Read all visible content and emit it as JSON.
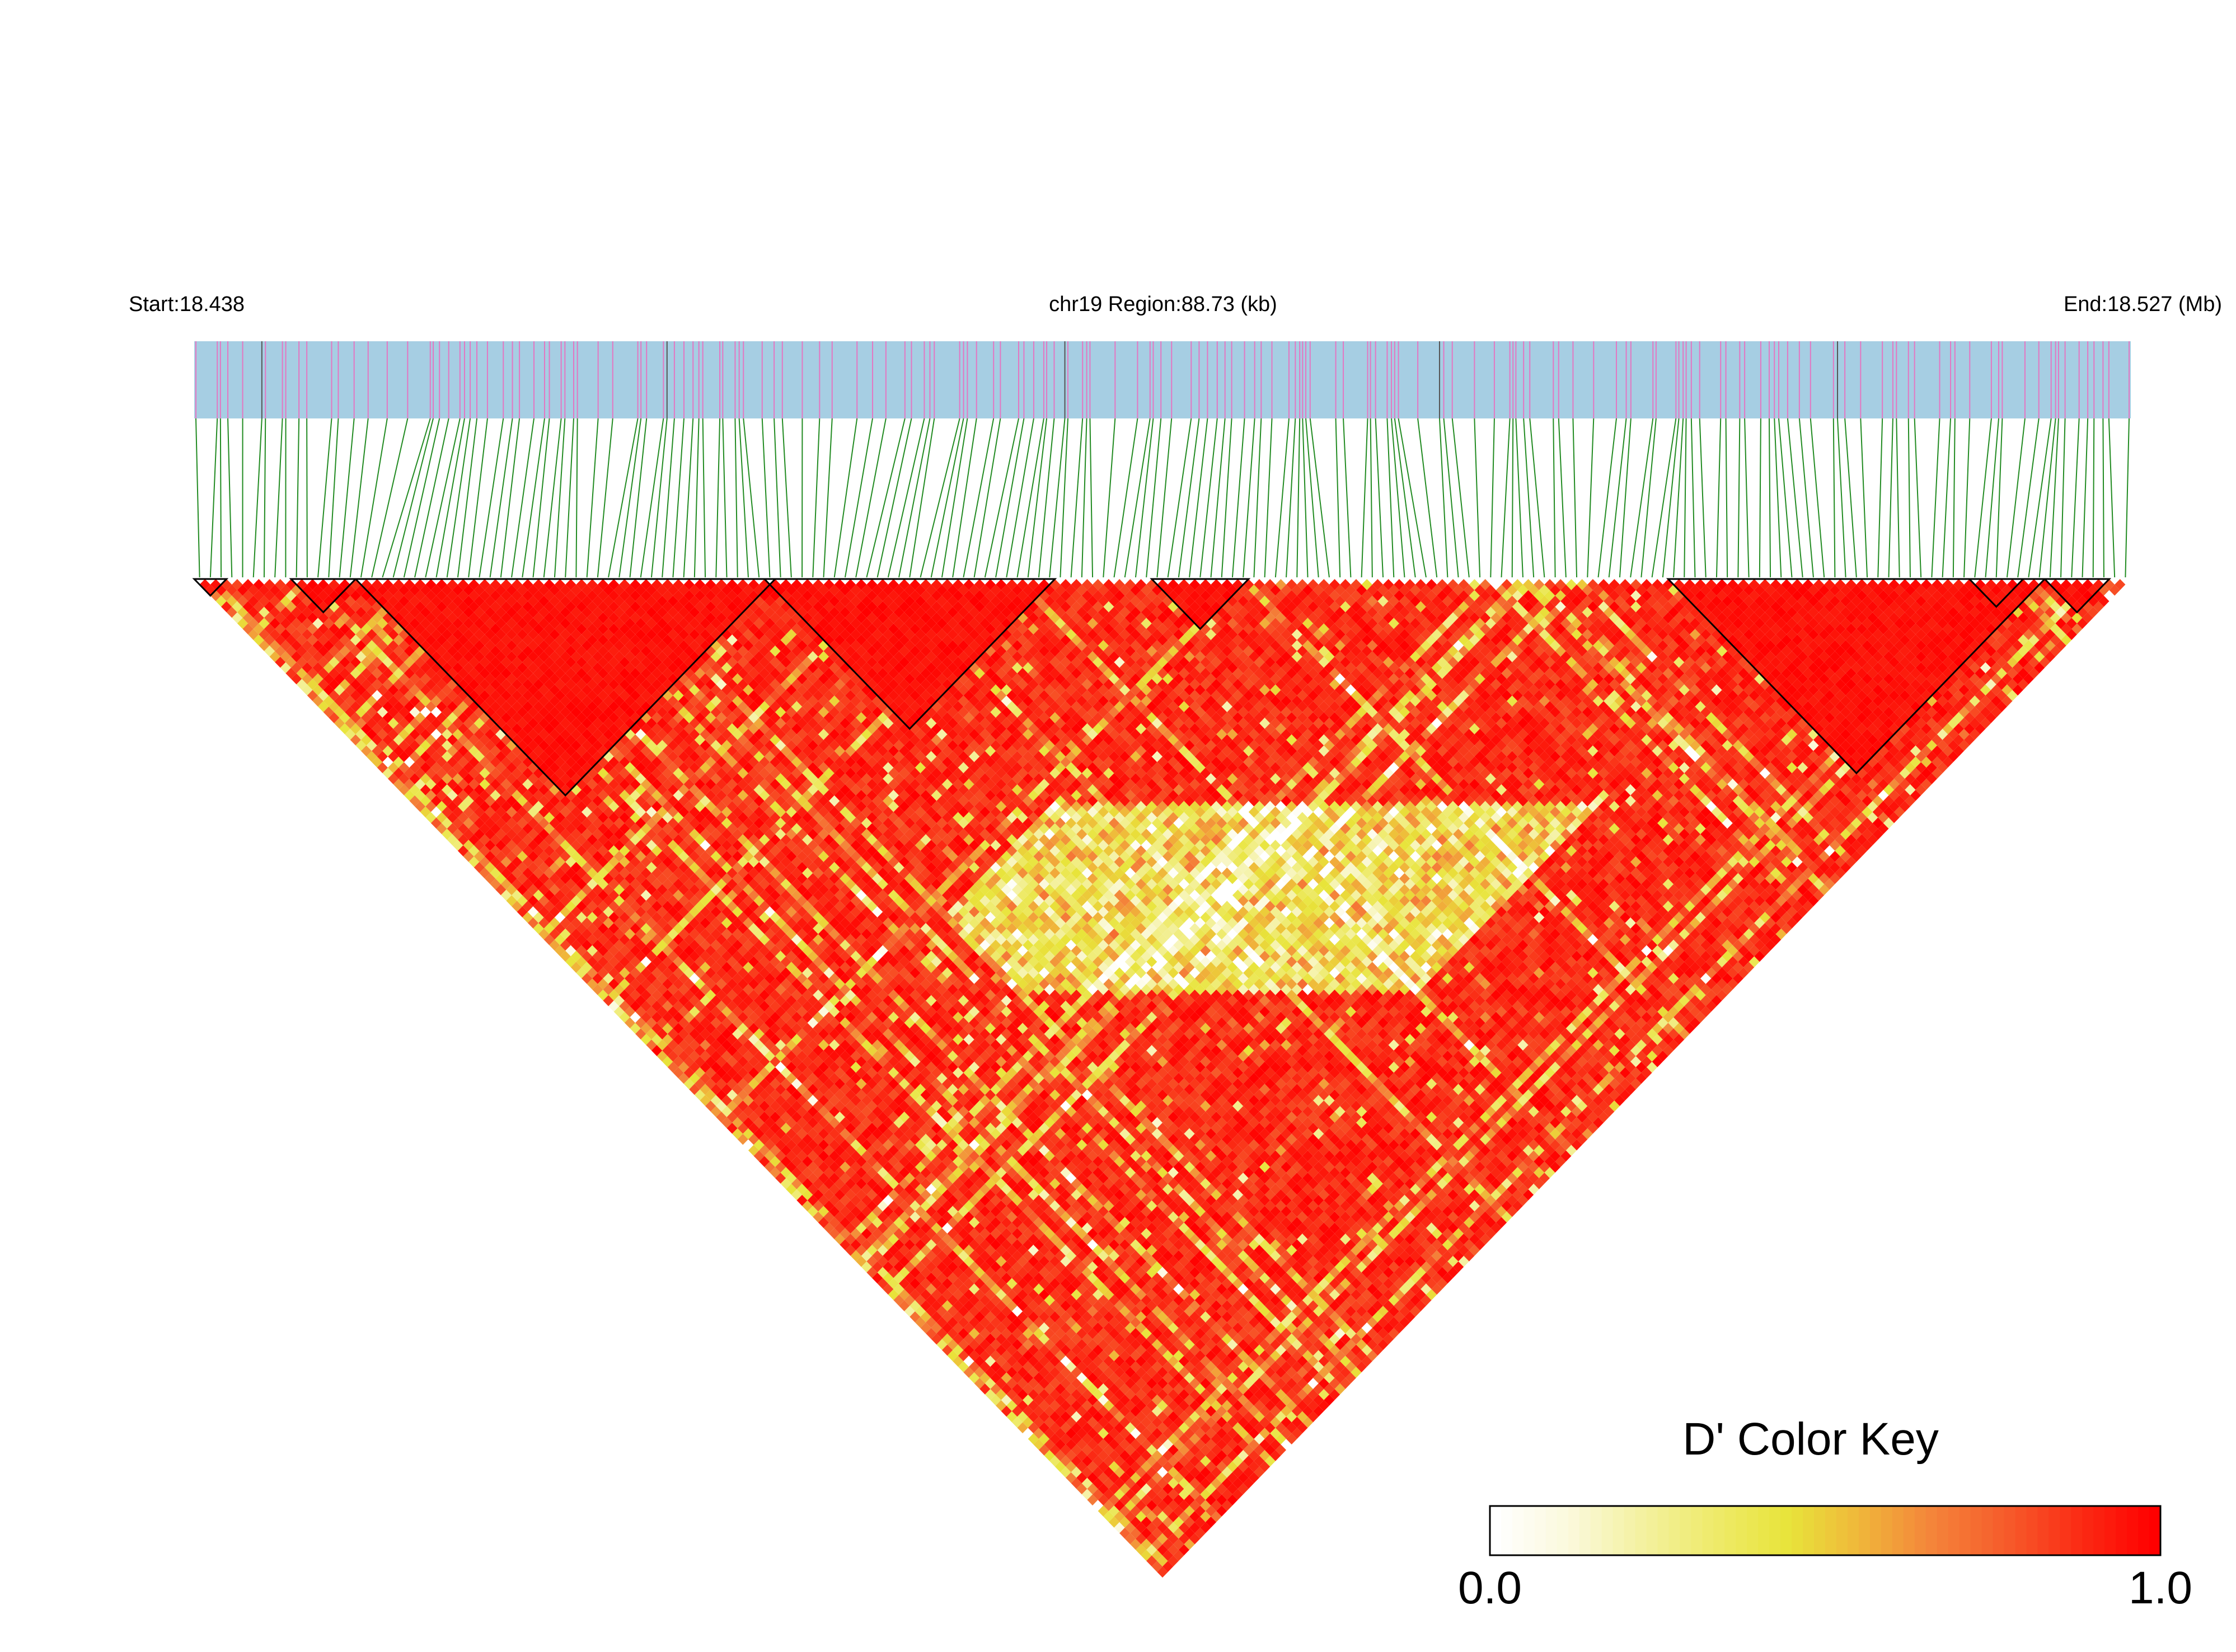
{
  "chart_data": {
    "type": "heatmap",
    "subtype": "linkage-disequilibrium-triangle",
    "header": {
      "start_label": "Start:18.438",
      "region_label": "chr19 Region:88.73 (kb)",
      "end_label": "End:18.527 (Mb)"
    },
    "region": {
      "chromosome": "chr19",
      "start_mb": 18.438,
      "end_mb": 18.527,
      "span_kb": 88.73
    },
    "metric": "D'",
    "n_snps": 180,
    "colors": {
      "gene_bar": "#a6cee3",
      "snp_tick": "#e377c2",
      "connector": "#228b22",
      "high_ld": "#ff0000",
      "mid_ld": "#e8e43a",
      "low_ld": "#ffffff",
      "block_outline": "#000000"
    },
    "ld_blocks_snp_index_ranges": [
      [
        0,
        2
      ],
      [
        9,
        14
      ],
      [
        15,
        53
      ],
      [
        53,
        79
      ],
      [
        89,
        97
      ],
      [
        137,
        171
      ],
      [
        165,
        169
      ],
      [
        172,
        177
      ]
    ],
    "legend": {
      "title": "D' Color Key",
      "min_label": "0.0",
      "max_label": "1.0",
      "gradient": [
        "#ffffff",
        "#fbf9dc",
        "#f4f1a0",
        "#eeea6a",
        "#e8e43a",
        "#f0b53a",
        "#f4823a",
        "#f65a2a",
        "#fb2a14",
        "#ff0000"
      ]
    }
  }
}
